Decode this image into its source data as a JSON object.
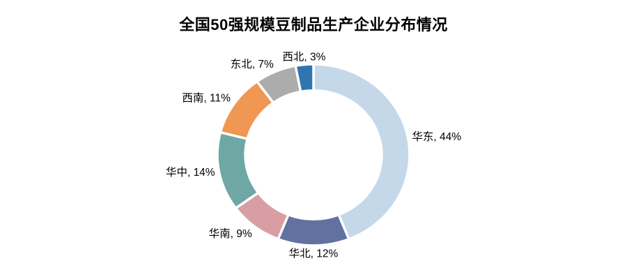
{
  "title": "全国50强规模豆制品生产企业分布情况",
  "chart_data": {
    "type": "pie",
    "subtype": "doughnut",
    "title": "全国50强规模豆制品生产企业分布情况",
    "unit": "%",
    "total": 100,
    "start_angle_deg_clockwise_from_top": 0,
    "direction": "clockwise",
    "legend": "none",
    "labels_position": "outside-end",
    "label_format": "{label}, {value}%",
    "background_color": "#ffffff",
    "slice_border_color": "#ffffff",
    "slices": [
      {
        "label": "华东",
        "value": 44,
        "color": "#c4d8e9"
      },
      {
        "label": "华北",
        "value": 12,
        "color": "#6271a0"
      },
      {
        "label": "华南",
        "value": 9,
        "color": "#d99ea4"
      },
      {
        "label": "华中",
        "value": 14,
        "color": "#6fa7a4"
      },
      {
        "label": "西南",
        "value": 11,
        "color": "#f09753"
      },
      {
        "label": "东北",
        "value": 7,
        "color": "#acacac"
      },
      {
        "label": "西北",
        "value": 3,
        "color": "#2f76b0"
      }
    ]
  }
}
